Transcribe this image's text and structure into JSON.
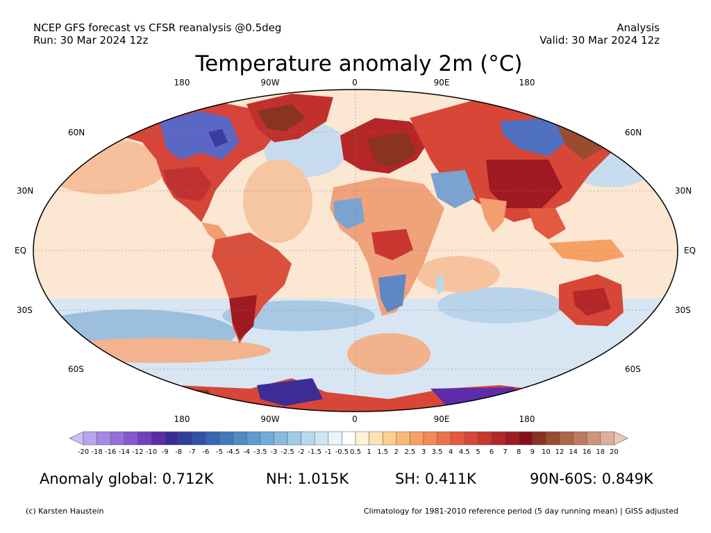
{
  "header": {
    "source_line1": "NCEP GFS forecast vs CFSR reanalysis @0.5deg",
    "source_line2": "Run: 30 Mar 2024 12z",
    "type_line1": "Analysis",
    "type_line2": "Valid: 30 Mar 2024 12z"
  },
  "title": "Temperature anomaly 2m (°C)",
  "map": {
    "lon_labels_top": [
      "180",
      "90W",
      "0",
      "90E",
      "180"
    ],
    "lon_labels_bottom": [
      "180",
      "90W",
      "0",
      "90E",
      "180"
    ],
    "lat_labels_left": [
      "60N",
      "30N",
      "EQ",
      "30S",
      "60S"
    ],
    "lat_labels_right": [
      "60N",
      "30N",
      "EQ",
      "30S",
      "60S"
    ],
    "ocean_color": "#fbe7d2",
    "border_color": "#000000"
  },
  "colorbar": {
    "ticks": [
      "-20",
      "-18",
      "-16",
      "-14",
      "-12",
      "-10",
      "-9",
      "-8",
      "-7",
      "-6",
      "-5",
      "-4.5",
      "-4",
      "-3.5",
      "-3",
      "-2.5",
      "-2",
      "-1.5",
      "-1",
      "-0.5",
      "0.5",
      "1",
      "1.5",
      "2",
      "2.5",
      "3",
      "3.5",
      "4",
      "4.5",
      "5",
      "6",
      "7",
      "8",
      "9",
      "10",
      "12",
      "14",
      "16",
      "18",
      "20"
    ],
    "colors": [
      "#c9c0f5",
      "#b6a6ee",
      "#a48ae6",
      "#9370dc",
      "#8358cf",
      "#7240be",
      "#5e2ca8",
      "#3b2c96",
      "#2d3f9c",
      "#2f52a8",
      "#3766b3",
      "#4279bd",
      "#4f8bc6",
      "#5e9ccf",
      "#71acd7",
      "#87bcdf",
      "#9ecbe6",
      "#b7d9ee",
      "#d0e6f5",
      "#eaf3fa",
      "#ffffff",
      "#fff3d6",
      "#fde4b2",
      "#fcd08f",
      "#fab877",
      "#f7a064",
      "#f48a55",
      "#ee7249",
      "#e45a3f",
      "#d84637",
      "#c8362f",
      "#b52628",
      "#a01a22",
      "#85101c",
      "#8a3320",
      "#9b4b30",
      "#ad6447",
      "#bc7b5e",
      "#cc957a",
      "#dcb09a",
      "#ebc8b6"
    ]
  },
  "stats": {
    "global": "Anomaly global: 0.712K",
    "nh": "NH: 1.015K",
    "sh": "SH: 0.411K",
    "arctic": "90N-60S: 0.849K"
  },
  "footer": {
    "credit": "(c) Karsten Haustein",
    "climatology": "Climatology for 1981-2010 reference period (5 day running mean) | GISS adjusted"
  }
}
